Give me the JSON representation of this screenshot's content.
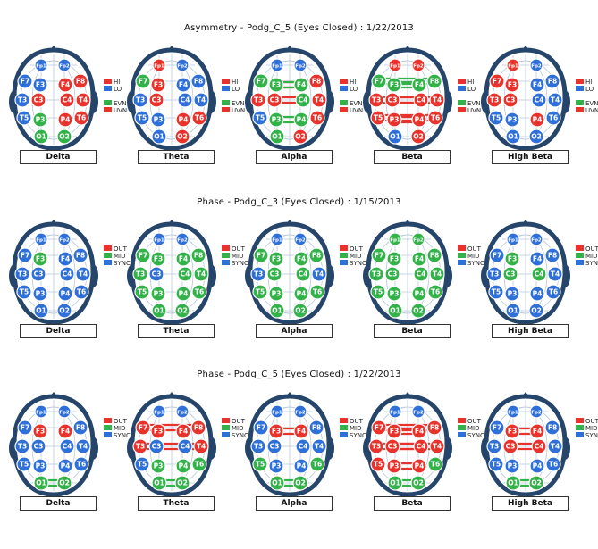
{
  "colors": {
    "red": "#e8332c",
    "green": "#33b24a",
    "blue": "#2f6fd8",
    "head": "#26456b"
  },
  "electrodes": [
    "Fp1",
    "Fp2",
    "F7",
    "F3",
    "F4",
    "F8",
    "T3",
    "C3",
    "C4",
    "T4",
    "T5",
    "P3",
    "P4",
    "T6",
    "O1",
    "O2"
  ],
  "sections": [
    {
      "title": "Asymmetry - Podg_C_5 (Eyes Closed) : 1/22/2013",
      "legend": [
        {
          "label": "HI",
          "color": "red"
        },
        {
          "label": "LO",
          "color": "blue"
        },
        {
          "label": "EVN",
          "color": "green"
        },
        {
          "label": "UVN",
          "color": "red"
        }
      ],
      "panels": [
        {
          "band": "Delta",
          "nodes": {
            "Fp1": "B",
            "Fp2": "B",
            "F7": "B",
            "F3": "B",
            "F4": "R",
            "F8": "R",
            "T3": "B",
            "C3": "R",
            "C4": "R",
            "T4": "R",
            "T5": "B",
            "P3": "G",
            "P4": "R",
            "T6": "R",
            "O1": "G",
            "O2": "G"
          },
          "lines": []
        },
        {
          "band": "Theta",
          "nodes": {
            "Fp1": "R",
            "Fp2": "B",
            "F7": "G",
            "F3": "R",
            "F4": "B",
            "F8": "B",
            "T3": "B",
            "C3": "R",
            "C4": "B",
            "T4": "B",
            "T5": "B",
            "P3": "B",
            "P4": "R",
            "T6": "R",
            "O1": "B",
            "O2": "R"
          },
          "lines": []
        },
        {
          "band": "Alpha",
          "nodes": {
            "Fp1": "B",
            "Fp2": "B",
            "F7": "G",
            "F3": "G",
            "F4": "G",
            "F8": "R",
            "T3": "R",
            "C3": "R",
            "C4": "G",
            "T4": "R",
            "T5": "B",
            "P3": "G",
            "P4": "G",
            "T6": "R",
            "O1": "G",
            "O2": "R"
          },
          "lines": [
            [
              "F3",
              "F4",
              "R"
            ],
            [
              "C3",
              "C4",
              "R"
            ],
            [
              "P3",
              "P4",
              "G"
            ],
            [
              "F3",
              "F4",
              "G"
            ]
          ]
        },
        {
          "band": "Beta",
          "nodes": {
            "Fp1": "R",
            "Fp2": "R",
            "F7": "G",
            "F3": "G",
            "F4": "G",
            "F8": "G",
            "T3": "R",
            "C3": "R",
            "C4": "R",
            "T4": "R",
            "T5": "R",
            "P3": "R",
            "P4": "R",
            "T6": "R",
            "O1": "B",
            "O2": "R"
          },
          "lines": [
            [
              "F7",
              "F8",
              "G"
            ],
            [
              "F3",
              "F4",
              "G"
            ],
            [
              "T3",
              "T4",
              "R"
            ],
            [
              "C3",
              "C4",
              "R"
            ],
            [
              "P3",
              "P4",
              "R"
            ],
            [
              "T5",
              "T6",
              "R"
            ]
          ]
        },
        {
          "band": "High Beta",
          "nodes": {
            "Fp1": "R",
            "Fp2": "B",
            "F7": "R",
            "F3": "R",
            "F4": "B",
            "F8": "B",
            "T3": "R",
            "C3": "R",
            "C4": "B",
            "T4": "B",
            "T5": "B",
            "P3": "B",
            "P4": "R",
            "T6": "B",
            "O1": "B",
            "O2": "B"
          },
          "lines": []
        }
      ]
    },
    {
      "title": "Phase - Podg_C_3 (Eyes Closed) : 1/15/2013",
      "legend": [
        {
          "label": "OUT",
          "color": "red"
        },
        {
          "label": "MID",
          "color": "green"
        },
        {
          "label": "SYNC",
          "color": "blue"
        }
      ],
      "panels": [
        {
          "band": "Delta",
          "nodes": {
            "Fp1": "B",
            "Fp2": "B",
            "F7": "B",
            "F3": "G",
            "F4": "B",
            "F8": "B",
            "T3": "B",
            "C3": "B",
            "C4": "B",
            "T4": "B",
            "T5": "B",
            "P3": "B",
            "P4": "B",
            "T6": "B",
            "O1": "B",
            "O2": "B"
          },
          "lines": []
        },
        {
          "band": "Theta",
          "nodes": {
            "Fp1": "B",
            "Fp2": "B",
            "F7": "G",
            "F3": "G",
            "F4": "G",
            "F8": "G",
            "T3": "G",
            "C3": "B",
            "C4": "G",
            "T4": "G",
            "T5": "G",
            "P3": "G",
            "P4": "G",
            "T6": "G",
            "O1": "G",
            "O2": "G"
          },
          "lines": []
        },
        {
          "band": "Alpha",
          "nodes": {
            "Fp1": "B",
            "Fp2": "B",
            "F7": "G",
            "F3": "G",
            "F4": "G",
            "F8": "G",
            "T3": "B",
            "C3": "G",
            "C4": "G",
            "T4": "B",
            "T5": "G",
            "P3": "G",
            "P4": "G",
            "T6": "G",
            "O1": "G",
            "O2": "G"
          },
          "lines": []
        },
        {
          "band": "Beta",
          "nodes": {
            "Fp1": "G",
            "Fp2": "G",
            "F7": "G",
            "F3": "G",
            "F4": "G",
            "F8": "G",
            "T3": "G",
            "C3": "G",
            "C4": "G",
            "T4": "G",
            "T5": "G",
            "P3": "G",
            "P4": "G",
            "T6": "G",
            "O1": "G",
            "O2": "G"
          },
          "lines": []
        },
        {
          "band": "High Beta",
          "nodes": {
            "Fp1": "B",
            "Fp2": "B",
            "F7": "B",
            "F3": "G",
            "F4": "B",
            "F8": "B",
            "T3": "B",
            "C3": "G",
            "C4": "G",
            "T4": "B",
            "T5": "B",
            "P3": "B",
            "P4": "B",
            "T6": "B",
            "O1": "B",
            "O2": "B"
          },
          "lines": []
        }
      ]
    },
    {
      "title": "Phase - Podg_C_5 (Eyes Closed) : 1/22/2013",
      "legend": [
        {
          "label": "OUT",
          "color": "red"
        },
        {
          "label": "MID",
          "color": "green"
        },
        {
          "label": "SYNC",
          "color": "blue"
        }
      ],
      "panels": [
        {
          "band": "Delta",
          "nodes": {
            "Fp1": "B",
            "Fp2": "B",
            "F7": "B",
            "F3": "R",
            "F4": "R",
            "F8": "B",
            "T3": "B",
            "C3": "B",
            "C4": "B",
            "T4": "B",
            "T5": "B",
            "P3": "B",
            "P4": "B",
            "T6": "B",
            "O1": "G",
            "O2": "G"
          },
          "lines": [
            [
              "O1",
              "O2",
              "G"
            ]
          ]
        },
        {
          "band": "Theta",
          "nodes": {
            "Fp1": "B",
            "Fp2": "B",
            "F7": "R",
            "F3": "R",
            "F4": "R",
            "F8": "R",
            "T3": "R",
            "C3": "B",
            "C4": "B",
            "T4": "R",
            "T5": "B",
            "P3": "G",
            "P4": "G",
            "T6": "G",
            "O1": "G",
            "O2": "G"
          },
          "lines": [
            [
              "F7",
              "F8",
              "R"
            ],
            [
              "T3",
              "T4",
              "R"
            ],
            [
              "O1",
              "O2",
              "G"
            ]
          ]
        },
        {
          "band": "Alpha",
          "nodes": {
            "Fp1": "B",
            "Fp2": "B",
            "F7": "B",
            "F3": "R",
            "F4": "R",
            "F8": "B",
            "T3": "B",
            "C3": "B",
            "C4": "B",
            "T4": "B",
            "T5": "G",
            "P3": "B",
            "P4": "B",
            "T6": "G",
            "O1": "G",
            "O2": "G"
          },
          "lines": [
            [
              "F3",
              "F4",
              "R"
            ],
            [
              "O1",
              "O2",
              "G"
            ]
          ]
        },
        {
          "band": "Beta",
          "nodes": {
            "Fp1": "B",
            "Fp2": "B",
            "F7": "R",
            "F3": "R",
            "F4": "R",
            "F8": "R",
            "T3": "R",
            "C3": "R",
            "C4": "R",
            "T4": "R",
            "T5": "R",
            "P3": "R",
            "P4": "R",
            "T6": "G",
            "O1": "G",
            "O2": "G"
          },
          "lines": [
            [
              "F7",
              "F8",
              "R"
            ],
            [
              "F3",
              "F4",
              "R"
            ],
            [
              "T3",
              "T4",
              "R"
            ],
            [
              "C3",
              "C4",
              "R"
            ],
            [
              "P3",
              "P4",
              "R"
            ],
            [
              "O1",
              "O2",
              "G"
            ]
          ]
        },
        {
          "band": "High Beta",
          "nodes": {
            "Fp1": "B",
            "Fp2": "B",
            "F7": "B",
            "F3": "R",
            "F4": "R",
            "F8": "B",
            "T3": "B",
            "C3": "R",
            "C4": "R",
            "T4": "B",
            "T5": "B",
            "P3": "B",
            "P4": "B",
            "T6": "B",
            "O1": "G",
            "O2": "G"
          },
          "lines": [
            [
              "F3",
              "F4",
              "R"
            ],
            [
              "C3",
              "C4",
              "R"
            ],
            [
              "O1",
              "O2",
              "G"
            ]
          ]
        }
      ]
    }
  ]
}
